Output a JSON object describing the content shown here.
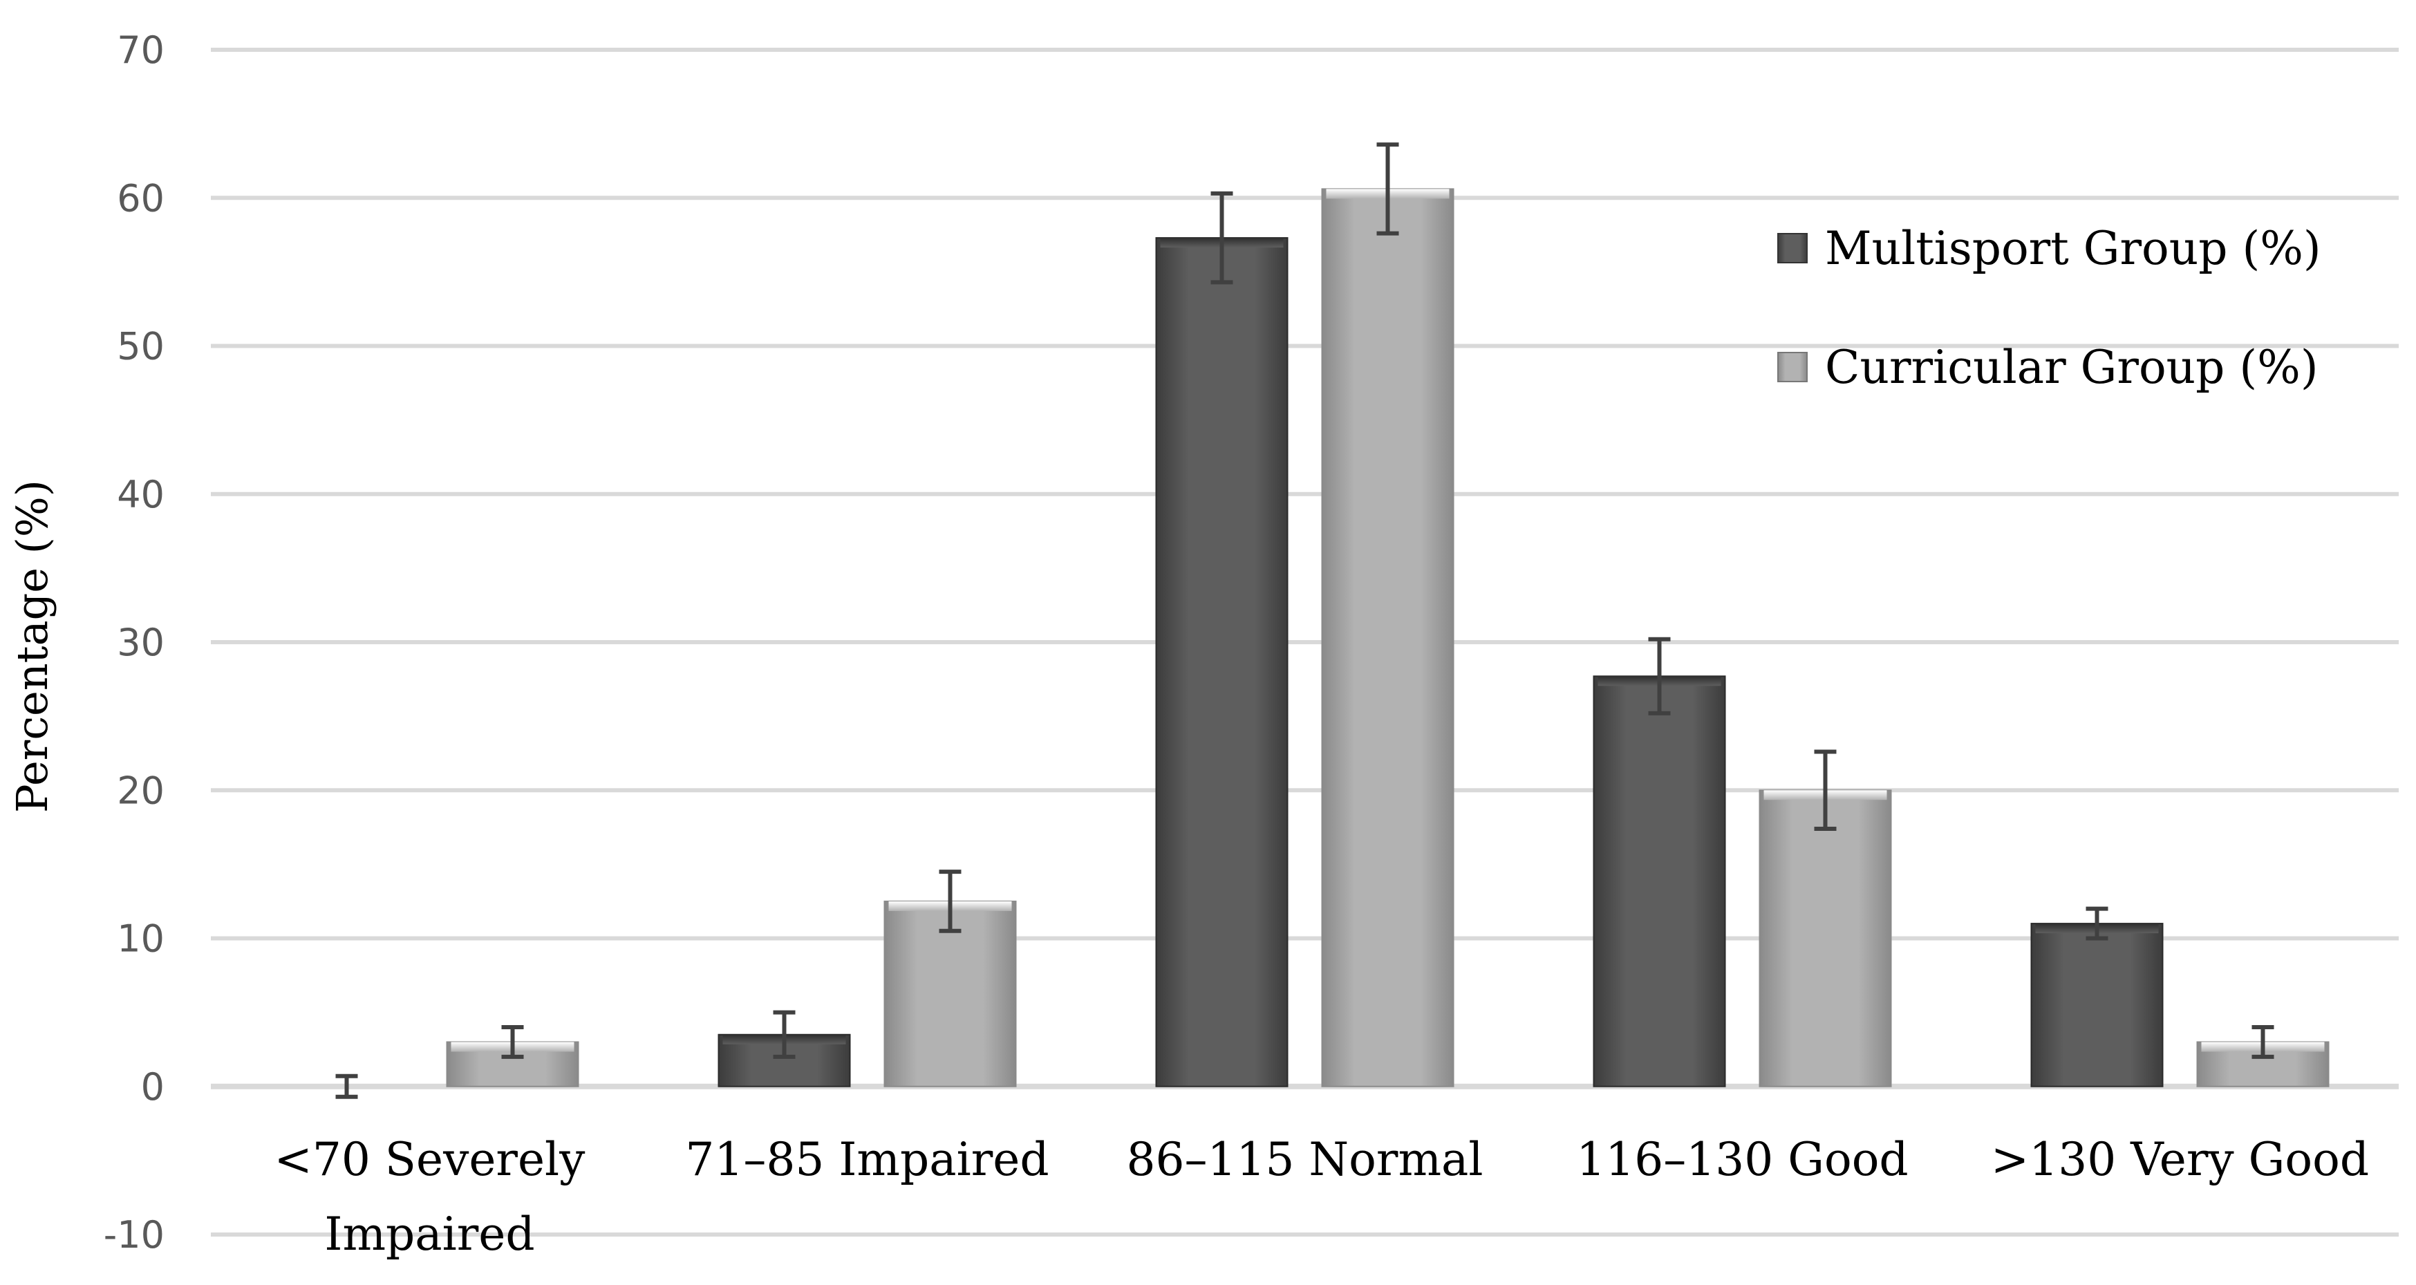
{
  "chart_data": {
    "type": "bar",
    "title": "",
    "xlabel": "",
    "ylabel": "Percentage (%)",
    "ylim": [
      -10,
      70
    ],
    "yticks": [
      -10,
      0,
      10,
      20,
      30,
      40,
      50,
      60,
      70
    ],
    "grid": true,
    "legend_position": "top-right",
    "categories": [
      [
        "<70 Severely",
        "Impaired"
      ],
      [
        "71–85 Impaired"
      ],
      [
        "86–115 Normal"
      ],
      [
        "116–130 Good"
      ],
      [
        ">130 Very Good"
      ]
    ],
    "series": [
      {
        "name": "Multisport Group (%)",
        "color": "#5a5a5a",
        "values": [
          0,
          3.5,
          57.3,
          27.7,
          11
        ],
        "error": [
          0.7,
          1.5,
          3.0,
          2.5,
          1.0
        ]
      },
      {
        "name": "Curricular Group (%)",
        "color": "#ababab",
        "values": [
          3,
          12.5,
          60.6,
          20,
          3
        ],
        "error": [
          1.0,
          2.0,
          3.0,
          2.6,
          1.0
        ]
      }
    ]
  }
}
